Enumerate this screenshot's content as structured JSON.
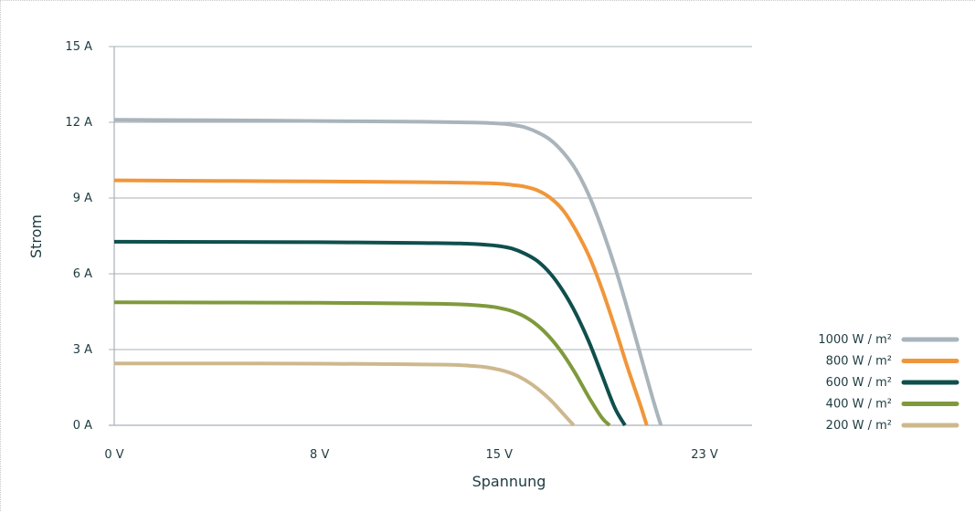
{
  "chart_data": {
    "type": "line",
    "xlabel": "Spannung",
    "ylabel": "Strom",
    "xlim": [
      0,
      23
    ],
    "ylim": [
      0,
      15
    ],
    "x_ticks": [
      {
        "value": 0,
        "label": "0 V"
      },
      {
        "value": 8,
        "label": "8 V"
      },
      {
        "value": 15,
        "label": "15 V"
      },
      {
        "value": 23,
        "label": "23 V"
      }
    ],
    "y_ticks": [
      {
        "value": 0,
        "label": "0 A"
      },
      {
        "value": 3,
        "label": "3 A"
      },
      {
        "value": 6,
        "label": "6 A"
      },
      {
        "value": 9,
        "label": "9 A"
      },
      {
        "value": 12,
        "label": "12 A"
      },
      {
        "value": 15,
        "label": "15 A"
      }
    ],
    "grid": true,
    "legend_position": "right",
    "series": [
      {
        "name": "1000 W / m²",
        "color": "#a9b4bb",
        "points": [
          [
            0,
            12.1
          ],
          [
            4,
            12.08
          ],
          [
            8,
            12.05
          ],
          [
            12,
            12.02
          ],
          [
            14,
            11.99
          ],
          [
            15,
            11.95
          ],
          [
            15.5,
            11.9
          ],
          [
            16,
            11.8
          ],
          [
            16.5,
            11.6
          ],
          [
            17,
            11.3
          ],
          [
            17.5,
            10.8
          ],
          [
            18,
            10.1
          ],
          [
            18.5,
            9.1
          ],
          [
            19,
            7.8
          ],
          [
            19.5,
            6.3
          ],
          [
            20,
            4.6
          ],
          [
            20.5,
            2.8
          ],
          [
            21,
            1.0
          ],
          [
            21.3,
            0.0
          ]
        ]
      },
      {
        "name": "800 W / m²",
        "color": "#f0963a",
        "points": [
          [
            0,
            9.7
          ],
          [
            4,
            9.68
          ],
          [
            8,
            9.66
          ],
          [
            12,
            9.63
          ],
          [
            14,
            9.6
          ],
          [
            15,
            9.57
          ],
          [
            15.5,
            9.52
          ],
          [
            16,
            9.45
          ],
          [
            16.5,
            9.3
          ],
          [
            17,
            9.0
          ],
          [
            17.5,
            8.5
          ],
          [
            18,
            7.7
          ],
          [
            18.5,
            6.7
          ],
          [
            19,
            5.4
          ],
          [
            19.5,
            3.9
          ],
          [
            20,
            2.3
          ],
          [
            20.5,
            0.8
          ],
          [
            20.75,
            0.0
          ]
        ]
      },
      {
        "name": "600 W / m²",
        "color": "#0f4f4d",
        "points": [
          [
            0,
            7.27
          ],
          [
            4,
            7.26
          ],
          [
            8,
            7.25
          ],
          [
            12,
            7.22
          ],
          [
            13.5,
            7.2
          ],
          [
            14.5,
            7.15
          ],
          [
            15,
            7.1
          ],
          [
            15.5,
            7.0
          ],
          [
            16,
            6.8
          ],
          [
            16.5,
            6.5
          ],
          [
            17,
            6.0
          ],
          [
            17.5,
            5.3
          ],
          [
            18,
            4.4
          ],
          [
            18.5,
            3.3
          ],
          [
            19,
            2.0
          ],
          [
            19.5,
            0.7
          ],
          [
            19.9,
            0.0
          ]
        ]
      },
      {
        "name": "400 W / m²",
        "color": "#7f9a3c",
        "points": [
          [
            0,
            4.87
          ],
          [
            4,
            4.86
          ],
          [
            8,
            4.85
          ],
          [
            12,
            4.82
          ],
          [
            13.5,
            4.79
          ],
          [
            14.5,
            4.72
          ],
          [
            15,
            4.65
          ],
          [
            15.5,
            4.52
          ],
          [
            16,
            4.3
          ],
          [
            16.5,
            3.95
          ],
          [
            17,
            3.45
          ],
          [
            17.5,
            2.8
          ],
          [
            18,
            2.0
          ],
          [
            18.5,
            1.1
          ],
          [
            19,
            0.3
          ],
          [
            19.3,
            0.0
          ]
        ]
      },
      {
        "name": "200 W / m²",
        "color": "#cdb88e",
        "points": [
          [
            0,
            2.45
          ],
          [
            4,
            2.45
          ],
          [
            8,
            2.44
          ],
          [
            11,
            2.42
          ],
          [
            13,
            2.4
          ],
          [
            14,
            2.35
          ],
          [
            14.5,
            2.3
          ],
          [
            15,
            2.2
          ],
          [
            15.5,
            2.05
          ],
          [
            16,
            1.8
          ],
          [
            16.5,
            1.45
          ],
          [
            17,
            1.0
          ],
          [
            17.5,
            0.45
          ],
          [
            17.9,
            0.0
          ]
        ]
      }
    ]
  }
}
